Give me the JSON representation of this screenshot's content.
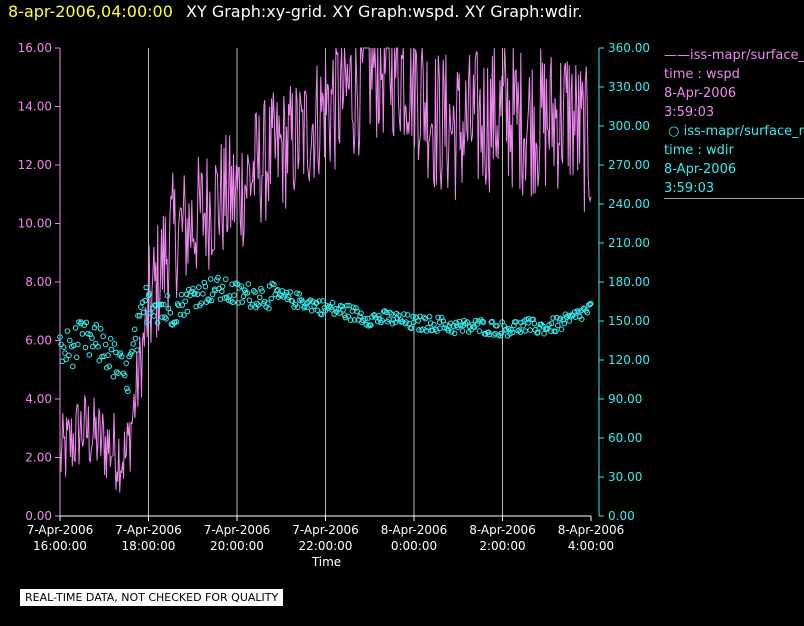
{
  "header": {
    "timestamp": "8-apr-2006,04:00:00",
    "graph_titles": "XY Graph:xy-grid.  XY Graph:wspd.  XY Graph:wdir."
  },
  "legend": {
    "series1": {
      "name": "iss-mapr/surface_m",
      "line1": "time : wspd",
      "line2": "8-Apr-2006",
      "line3": "3:59:03"
    },
    "series2": {
      "name": "iss-mapr/surface_m",
      "line1": "time : wdir",
      "line2": "8-Apr-2006",
      "line3": "3:59:03"
    }
  },
  "disclaimer": "REAL-TIME DATA, NOT CHECKED FOR QUALITY",
  "colors": {
    "wspd": "#ee88ee",
    "wdir": "#33eeee",
    "grid": "#bbbbbb",
    "timestamp": "#ffff33"
  },
  "chart_data": {
    "type": "line",
    "xlabel": "Time",
    "x_ticks": [
      {
        "l1": "7-Apr-2006",
        "l2": "16:00:00",
        "t": 16
      },
      {
        "l1": "7-Apr-2006",
        "l2": "18:00:00",
        "t": 18
      },
      {
        "l1": "7-Apr-2006",
        "l2": "20:00:00",
        "t": 20
      },
      {
        "l1": "7-Apr-2006",
        "l2": "22:00:00",
        "t": 22
      },
      {
        "l1": "8-Apr-2006",
        "l2": "0:00:00",
        "t": 24
      },
      {
        "l1": "8-Apr-2006",
        "l2": "2:00:00",
        "t": 26
      },
      {
        "l1": "8-Apr-2006",
        "l2": "4:00:00",
        "t": 28
      }
    ],
    "xlim": [
      "7-Apr-2006 16:00:00",
      "8-Apr-2006 04:00:00"
    ],
    "grid": "vertical lines at each time tick",
    "left_axis": {
      "series": "wspd",
      "ylim": [
        0,
        16
      ],
      "ticks": [
        "0.00",
        "2.00",
        "4.00",
        "6.00",
        "8.00",
        "10.00",
        "12.00",
        "14.00",
        "16.00"
      ]
    },
    "right_axis": {
      "series": "wdir",
      "ylim": [
        0,
        360
      ],
      "ticks": [
        "0.00",
        "30.00",
        "60.00",
        "90.00",
        "120.00",
        "150.00",
        "180.00",
        "210.00",
        "240.00",
        "270.00",
        "300.00",
        "330.00",
        "360.00"
      ]
    },
    "series": [
      {
        "key": "wspd",
        "axis": "left",
        "style": "line",
        "approx_points": [
          {
            "time": "7-Apr 16:00",
            "value": 2.0
          },
          {
            "time": "7-Apr 16:30",
            "value": 3.0
          },
          {
            "time": "7-Apr 17:00",
            "value": 2.5
          },
          {
            "time": "7-Apr 17:30",
            "value": 2.0
          },
          {
            "time": "7-Apr 18:00",
            "value": 7.0
          },
          {
            "time": "7-Apr 18:30",
            "value": 9.5
          },
          {
            "time": "7-Apr 19:00",
            "value": 10.0
          },
          {
            "time": "7-Apr 19:30",
            "value": 10.8
          },
          {
            "time": "7-Apr 20:00",
            "value": 11.0
          },
          {
            "time": "7-Apr 20:30",
            "value": 12.0
          },
          {
            "time": "7-Apr 21:00",
            "value": 12.5
          },
          {
            "time": "7-Apr 21:30",
            "value": 13.0
          },
          {
            "time": "7-Apr 22:00",
            "value": 14.0
          },
          {
            "time": "7-Apr 22:30",
            "value": 14.5
          },
          {
            "time": "7-Apr 23:00",
            "value": 15.3
          },
          {
            "time": "7-Apr 23:30",
            "value": 15.5
          },
          {
            "time": "8-Apr 0:00",
            "value": 15.0
          },
          {
            "time": "8-Apr 0:30",
            "value": 13.5
          },
          {
            "time": "8-Apr 1:00",
            "value": 13.2
          },
          {
            "time": "8-Apr 1:30",
            "value": 13.5
          },
          {
            "time": "8-Apr 2:00",
            "value": 13.8
          },
          {
            "time": "8-Apr 2:30",
            "value": 13.5
          },
          {
            "time": "8-Apr 3:00",
            "value": 13.5
          },
          {
            "time": "8-Apr 3:30",
            "value": 13.8
          },
          {
            "time": "8-Apr 4:00",
            "value": 12.5
          }
        ]
      },
      {
        "key": "wdir",
        "axis": "right",
        "style": "circle markers",
        "approx_points": [
          {
            "time": "7-Apr 16:00",
            "value": 125
          },
          {
            "time": "7-Apr 16:30",
            "value": 135
          },
          {
            "time": "7-Apr 17:00",
            "value": 130
          },
          {
            "time": "7-Apr 17:30",
            "value": 105
          },
          {
            "time": "7-Apr 18:00",
            "value": 170
          },
          {
            "time": "7-Apr 18:30",
            "value": 155
          },
          {
            "time": "7-Apr 19:00",
            "value": 170
          },
          {
            "time": "7-Apr 19:30",
            "value": 175
          },
          {
            "time": "7-Apr 20:00",
            "value": 170
          },
          {
            "time": "7-Apr 20:30",
            "value": 170
          },
          {
            "time": "7-Apr 21:00",
            "value": 168
          },
          {
            "time": "7-Apr 21:30",
            "value": 165
          },
          {
            "time": "7-Apr 22:00",
            "value": 160
          },
          {
            "time": "7-Apr 22:30",
            "value": 157
          },
          {
            "time": "7-Apr 23:00",
            "value": 152
          },
          {
            "time": "7-Apr 23:30",
            "value": 152
          },
          {
            "time": "8-Apr 0:00",
            "value": 148
          },
          {
            "time": "8-Apr 0:30",
            "value": 148
          },
          {
            "time": "8-Apr 1:00",
            "value": 145
          },
          {
            "time": "8-Apr 1:30",
            "value": 146
          },
          {
            "time": "8-Apr 2:00",
            "value": 144
          },
          {
            "time": "8-Apr 2:30",
            "value": 146
          },
          {
            "time": "8-Apr 3:00",
            "value": 145
          },
          {
            "time": "8-Apr 3:30",
            "value": 150
          },
          {
            "time": "8-Apr 4:00",
            "value": 160
          }
        ]
      }
    ]
  }
}
